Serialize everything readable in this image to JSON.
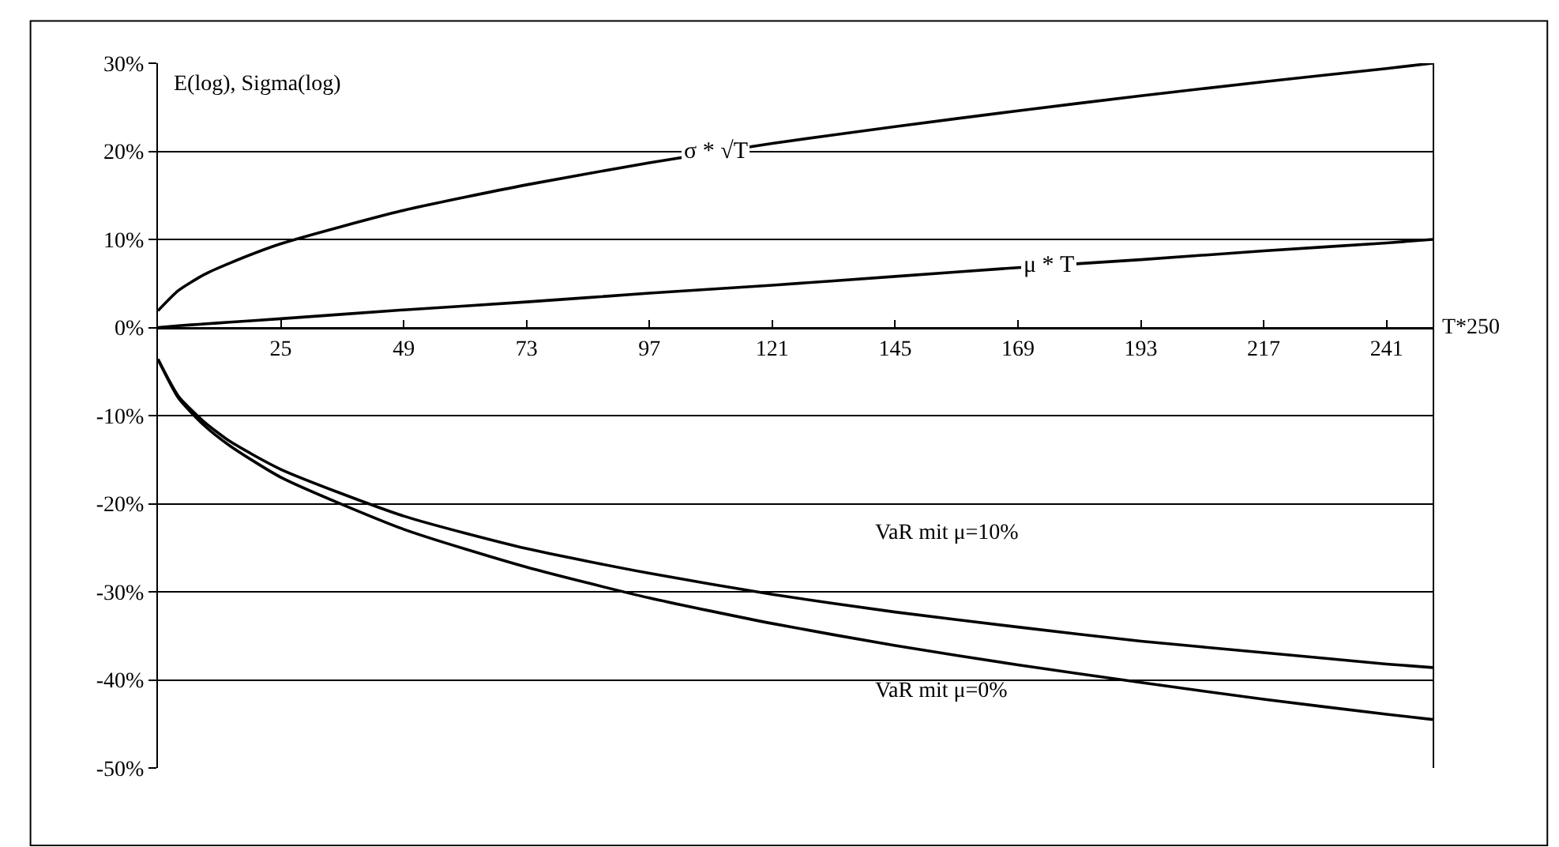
{
  "chart_data": {
    "type": "line",
    "x": [
      1,
      5,
      10,
      15,
      25,
      49,
      73,
      97,
      121,
      145,
      169,
      193,
      217,
      241,
      250
    ],
    "series": [
      {
        "color": "#000000",
        "values": [
          1.9,
          4.2,
          6.0,
          7.3,
          9.5,
          13.3,
          16.2,
          18.7,
          20.9,
          22.8,
          24.6,
          26.3,
          27.9,
          29.4,
          30.0
        ]
      },
      {
        "color": "#000000",
        "values": [
          0.0,
          0.2,
          0.4,
          0.6,
          1.0,
          2.0,
          2.9,
          3.9,
          4.8,
          5.8,
          6.8,
          7.7,
          8.7,
          9.6,
          10.0
        ]
      },
      {
        "color": "#000000",
        "values": [
          -3.6,
          -7.8,
          -10.7,
          -12.9,
          -16.1,
          -21.4,
          -25.1,
          -27.9,
          -30.3,
          -32.3,
          -34.0,
          -35.6,
          -36.9,
          -38.2,
          -38.6
        ]
      },
      {
        "color": "#000000",
        "values": [
          -3.6,
          -8.0,
          -11.1,
          -13.4,
          -17.0,
          -22.9,
          -27.2,
          -30.7,
          -33.6,
          -36.1,
          -38.3,
          -40.3,
          -42.2,
          -43.9,
          -44.5
        ]
      }
    ],
    "xlabel": "T*250",
    "xlim": [
      1,
      250
    ],
    "xticks": [
      25,
      49,
      73,
      97,
      121,
      145,
      169,
      193,
      217,
      241
    ],
    "ylim": [
      -50,
      30
    ],
    "yticks": [
      {
        "value": -50,
        "label": "-50%"
      },
      {
        "value": -40,
        "label": "-40%"
      },
      {
        "value": -30,
        "label": "-30%"
      },
      {
        "value": -20,
        "label": "-20%"
      },
      {
        "value": -10,
        "label": "-10%"
      },
      {
        "value": 0,
        "label": "0%"
      },
      {
        "value": 10,
        "label": "10%"
      },
      {
        "value": 20,
        "label": "20%"
      },
      {
        "value": 30,
        "label": "30%"
      }
    ],
    "grid": "y",
    "marker": "none",
    "line_style": "solid",
    "annotations": [
      "E(log), Sigma(log)",
      {
        "text": "σ * √T",
        "x": 110,
        "y": 19.9
      },
      {
        "text": "μ * T",
        "x": 175,
        "y": 7.0
      },
      "VaR mit μ=10%",
      "VaR mit μ=0%"
    ]
  }
}
